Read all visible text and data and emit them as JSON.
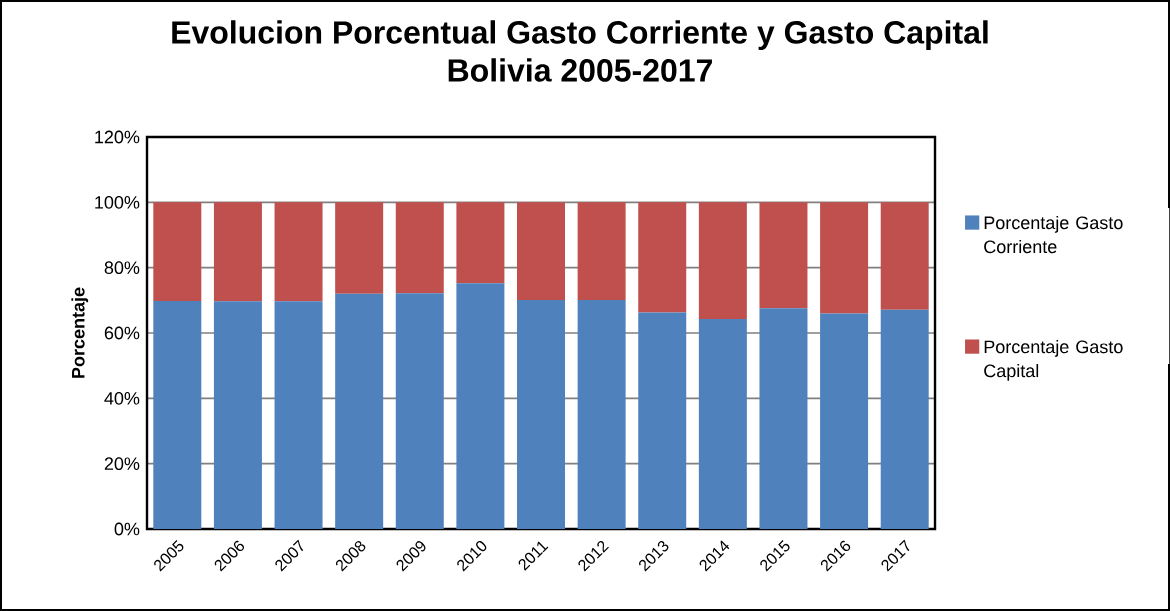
{
  "chart_data": {
    "type": "bar",
    "stacked": true,
    "title": "Evolucion Porcentual Gasto Corriente y Gasto Capital\nBolivia 2005-2017",
    "ylabel": "Porcentaje",
    "categories": [
      "2005",
      "2006",
      "2007",
      "2008",
      "2009",
      "2010",
      "2011",
      "2012",
      "2013",
      "2014",
      "2015",
      "2016",
      "2017"
    ],
    "series": [
      {
        "name": "Porcentaje Gasto Corriente",
        "color": "#4f81bd",
        "values": [
          69.8,
          69.7,
          69.7,
          72.0,
          72.2,
          75.2,
          70.1,
          70.1,
          66.3,
          64.3,
          67.6,
          66.0,
          67.1
        ]
      },
      {
        "name": "Porcentaje Gasto Capital",
        "color": "#c0504d",
        "values": [
          30.2,
          30.3,
          30.3,
          28.0,
          27.8,
          24.8,
          29.9,
          29.9,
          33.7,
          35.7,
          32.4,
          34.0,
          32.9
        ]
      }
    ],
    "ylim": [
      0,
      120
    ],
    "yticks": [
      {
        "value": 0,
        "label": "0%"
      },
      {
        "value": 20,
        "label": "20%"
      },
      {
        "value": 40,
        "label": "40%"
      },
      {
        "value": 60,
        "label": "60%"
      },
      {
        "value": 80,
        "label": "80%"
      },
      {
        "value": 100,
        "label": "100%"
      },
      {
        "value": 120,
        "label": "120%"
      }
    ],
    "grid": "y",
    "legend": "right"
  }
}
